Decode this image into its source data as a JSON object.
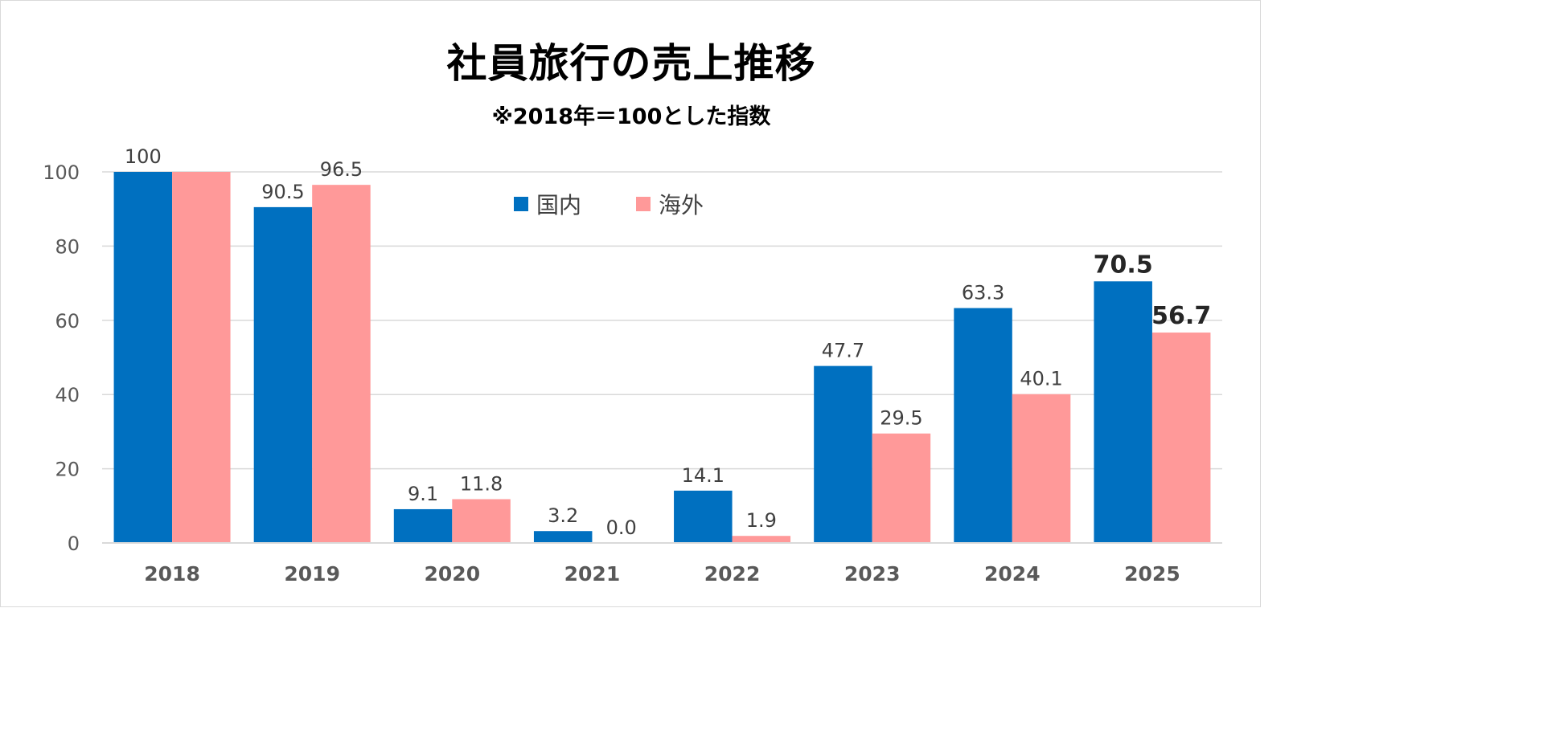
{
  "chart_data": {
    "type": "bar",
    "title": "社員旅行の売上推移",
    "subtitle": "※2018年＝100とした指数",
    "categories": [
      "2018",
      "2019",
      "2020",
      "2021",
      "2022",
      "2023",
      "2024",
      "2025"
    ],
    "series": [
      {
        "name": "国内",
        "color": "#0070c0",
        "values": [
          100,
          90.5,
          9.1,
          3.2,
          14.1,
          47.7,
          63.3,
          70.5
        ],
        "labels": [
          "100",
          "90.5",
          "9.1",
          "3.2",
          "14.1",
          "47.7",
          "63.3",
          "70.5"
        ]
      },
      {
        "name": "海外",
        "color": "#ff9999",
        "values": [
          100,
          96.5,
          11.8,
          0.0,
          1.9,
          29.5,
          40.1,
          56.7
        ],
        "labels": [
          "",
          "96.5",
          "11.8",
          "0.0",
          "1.9",
          "29.5",
          "40.1",
          "56.7"
        ]
      }
    ],
    "ylim": [
      0,
      100
    ],
    "yticks": [
      0,
      20,
      40,
      60,
      80,
      100
    ],
    "grid": true,
    "legend_position": "top-center",
    "highlight_category": "2025",
    "xlabel": "",
    "ylabel": ""
  }
}
